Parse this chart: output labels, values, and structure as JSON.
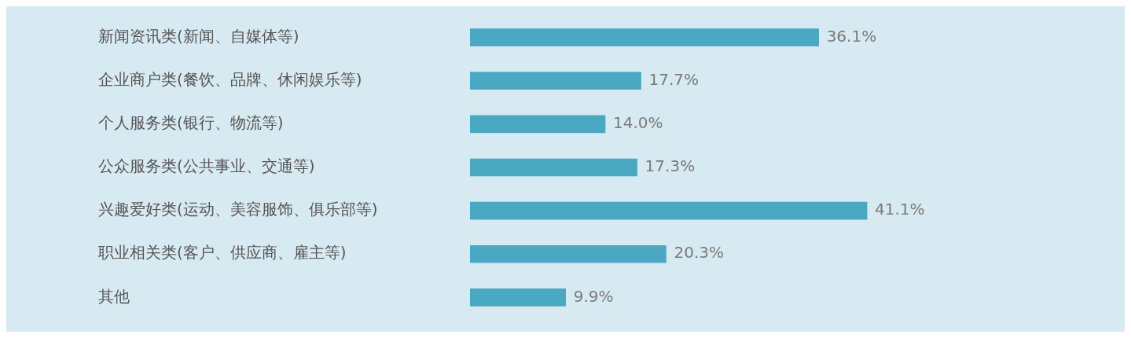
{
  "chart_data": {
    "type": "bar",
    "orientation": "horizontal",
    "categories": [
      "新闻资讯类(新闻、自媒体等)",
      "企业商户类(餐饮、品牌、休闲娱乐等)",
      "个人服务类(银行、物流等)",
      "公众服务类(公共事业、交通等)",
      "兴趣爱好类(运动、美容服饰、俱乐部等)",
      "职业相关类(客户、供应商、雇主等)",
      "其他"
    ],
    "values": [
      36.1,
      17.7,
      14.0,
      17.3,
      41.1,
      20.3,
      9.9
    ],
    "value_labels": [
      "36.1%",
      "17.7%",
      "14.0%",
      "17.3%",
      "41.1%",
      "20.3%",
      "9.9%"
    ],
    "color": "#4aa9c2",
    "tick_labels": "y"
  }
}
